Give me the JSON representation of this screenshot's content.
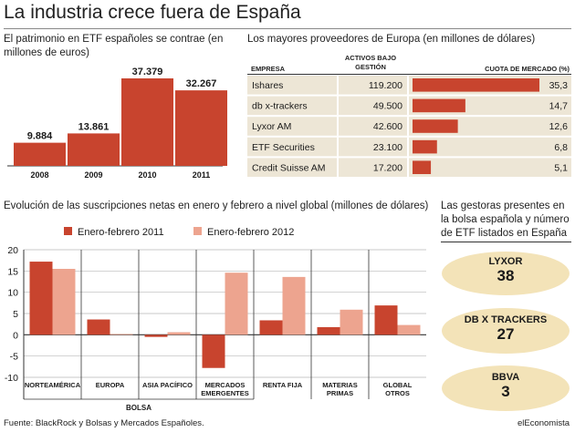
{
  "title": "La industria crece fuera de España",
  "footer": {
    "source": "Fuente: BlackRock y Bolsas y Mercados Españoles.",
    "brand": "elEconomista"
  },
  "colors": {
    "dark_red": "#c8442e",
    "light_red": "#eda48f",
    "row_bg": "#ede6d6",
    "ellipse_bg": "#f3e3b8"
  },
  "chart_data": [
    {
      "type": "bar",
      "title": "El patrimonio en ETF españoles se contrae (en millones de euros)",
      "categories": [
        "2008",
        "2009",
        "2010",
        "2011"
      ],
      "values": [
        9884,
        13861,
        37379,
        32267
      ],
      "value_labels": [
        "9.884",
        "13.861",
        "37.379",
        "32.267"
      ]
    },
    {
      "type": "table",
      "title": "Los mayores proveedores de Europa (en millones de dólares)",
      "columns": [
        "EMPRESA",
        "ACTIVOS BAJO GESTIÓN",
        "CUOTA DE MERCADO (%)"
      ],
      "rows": [
        {
          "empresa": "Ishares",
          "activos": "119.200",
          "cuota": 35.3,
          "cuota_label": "35,3"
        },
        {
          "empresa": "db x-trackers",
          "activos": "49.500",
          "cuota": 14.7,
          "cuota_label": "14,7"
        },
        {
          "empresa": "Lyxor AM",
          "activos": "42.600",
          "cuota": 12.6,
          "cuota_label": "12,6"
        },
        {
          "empresa": "ETF Securities",
          "activos": "23.100",
          "cuota": 6.8,
          "cuota_label": "6,8"
        },
        {
          "empresa": "Credit Suisse AM",
          "activos": "17.200",
          "cuota": 5.1,
          "cuota_label": "5,1"
        }
      ],
      "cuota_max": 35.3
    },
    {
      "type": "bar",
      "title": "Evolución de las suscripciones netas en enero y febrero a nivel global (millones de dólares)",
      "categories": [
        [
          "NORTEAMÉRICA"
        ],
        [
          "EUROPA"
        ],
        [
          "ASIA PACÍFICO"
        ],
        [
          "MERCADOS",
          "EMERGENTES"
        ],
        [
          "RENTA FIJA"
        ],
        [
          "MATERIAS",
          "PRIMAS"
        ],
        [
          "GLOBAL",
          "OTROS"
        ]
      ],
      "group_label": "BOLSA",
      "series": [
        {
          "name": "Enero-febrero 2011",
          "values": [
            17.2,
            3.6,
            -0.5,
            -7.8,
            3.4,
            1.8,
            6.9
          ]
        },
        {
          "name": "Enero-febrero 2012",
          "values": [
            15.5,
            0.2,
            0.6,
            14.6,
            13.6,
            5.9,
            2.3
          ]
        }
      ],
      "ylim": [
        -10,
        20
      ],
      "yticks": [
        "-10",
        "-5",
        "0",
        "5",
        "10",
        "15",
        "20"
      ],
      "grid": true
    }
  ],
  "gestoras": {
    "title": "Las gestoras presentes en la bolsa española y número de ETF listados en España",
    "items": [
      {
        "name": "LYXOR",
        "value": "38"
      },
      {
        "name": "DB X TRACKERS",
        "value": "27"
      },
      {
        "name": "BBVA",
        "value": "3"
      }
    ]
  }
}
